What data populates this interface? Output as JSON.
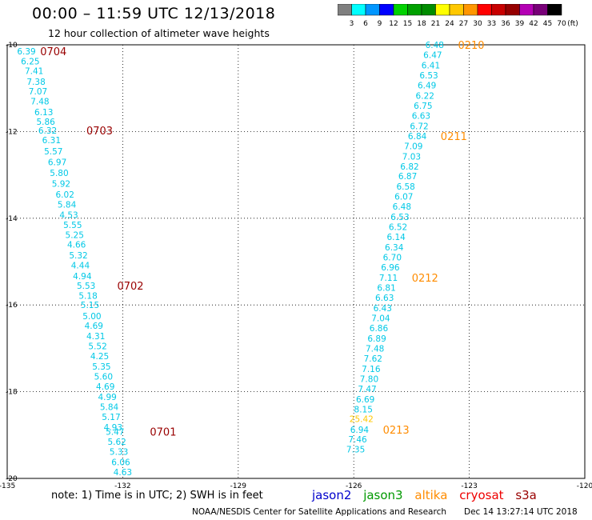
{
  "header": {
    "title": "00:00 – 11:59 UTC 12/13/2018",
    "subtitle": "12 hour collection of altimeter wave heights"
  },
  "colorbar": {
    "colors": [
      "#7f7f7f",
      "#00ffff",
      "#0096ff",
      "#0000ff",
      "#00d200",
      "#00a000",
      "#008c00",
      "#ffff00",
      "#ffc800",
      "#ff9600",
      "#ff0000",
      "#c80000",
      "#960000",
      "#b400b4",
      "#780078",
      "#000000"
    ],
    "labels": [
      "3",
      "6",
      "9",
      "12",
      "15",
      "18",
      "21",
      "24",
      "27",
      "30",
      "33",
      "36",
      "39",
      "42",
      "45",
      "70"
    ],
    "unit": "(ft)"
  },
  "footer": {
    "note": "note:  1) Time is in UTC;  2) SWH is in feet",
    "credit": "NOAA/NESDIS Center for Satellite Applications and Research",
    "timestamp": "Dec 14 13:27:14 UTC 2018"
  },
  "legend": [
    {
      "label": "jason2",
      "color": "#0000cc"
    },
    {
      "label": "jason3",
      "color": "#009900"
    },
    {
      "label": "altika",
      "color": "#ff8c00"
    },
    {
      "label": "cryosat",
      "color": "#ee0000"
    },
    {
      "label": "s3a",
      "color": "#990000"
    }
  ],
  "chart_data": {
    "type": "scatter",
    "title": "00:00 – 11:59 UTC 12/13/2018",
    "subtitle": "12 hour collection of altimeter wave heights",
    "xlim": [
      -135,
      -120
    ],
    "ylim": [
      -20,
      -10
    ],
    "x_ticks": [
      "-135",
      "-132",
      "-129",
      "-126",
      "-123",
      "-120"
    ],
    "y_ticks": [
      "-10",
      "-12",
      "-14",
      "-16",
      "-18",
      "-20"
    ],
    "grid": true,
    "series": [
      {
        "name": "s3a",
        "color": "#00c8e6",
        "label_color": "#990000",
        "points": [
          {
            "lon": -134.5,
            "lat": -10.15,
            "v": "6.39"
          },
          {
            "lon": -134.4,
            "lat": -10.38,
            "v": "6.25"
          },
          {
            "lon": -134.3,
            "lat": -10.6,
            "v": "7.41"
          },
          {
            "lon": -134.25,
            "lat": -10.85,
            "v": "7.38"
          },
          {
            "lon": -134.2,
            "lat": -11.07,
            "v": "7.07"
          },
          {
            "lon": -134.15,
            "lat": -11.3,
            "v": "7.48"
          },
          {
            "lon": -134.05,
            "lat": -11.55,
            "v": "6.13"
          },
          {
            "lon": -134.0,
            "lat": -11.77,
            "v": "5.86"
          },
          {
            "lon": -133.95,
            "lat": -11.97,
            "v": "6.32"
          },
          {
            "lon": -133.85,
            "lat": -12.2,
            "v": "6.31"
          },
          {
            "lon": -133.8,
            "lat": -12.45,
            "v": "5.57"
          },
          {
            "lon": -133.7,
            "lat": -12.7,
            "v": "6.97"
          },
          {
            "lon": -133.65,
            "lat": -12.95,
            "v": "5.80"
          },
          {
            "lon": -133.6,
            "lat": -13.2,
            "v": "5.92"
          },
          {
            "lon": -133.5,
            "lat": -13.45,
            "v": "6.02"
          },
          {
            "lon": -133.45,
            "lat": -13.68,
            "v": "5.84"
          },
          {
            "lon": -133.4,
            "lat": -13.92,
            "v": "4.53"
          },
          {
            "lon": -133.3,
            "lat": -14.15,
            "v": "5.55"
          },
          {
            "lon": -133.25,
            "lat": -14.38,
            "v": "5.25"
          },
          {
            "lon": -133.2,
            "lat": -14.6,
            "v": "4.66"
          },
          {
            "lon": -133.15,
            "lat": -14.85,
            "v": "5.32"
          },
          {
            "lon": -133.1,
            "lat": -15.08,
            "v": "4.44"
          },
          {
            "lon": -133.05,
            "lat": -15.33,
            "v": "4.94"
          },
          {
            "lon": -132.95,
            "lat": -15.55,
            "v": "5.53"
          },
          {
            "lon": -132.9,
            "lat": -15.78,
            "v": "5.18"
          },
          {
            "lon": -132.85,
            "lat": -16.0,
            "v": "5.15"
          },
          {
            "lon": -132.8,
            "lat": -16.25,
            "v": "5.00"
          },
          {
            "lon": -132.75,
            "lat": -16.48,
            "v": "4.69"
          },
          {
            "lon": -132.7,
            "lat": -16.72,
            "v": "4.31"
          },
          {
            "lon": -132.65,
            "lat": -16.95,
            "v": "5.52"
          },
          {
            "lon": -132.6,
            "lat": -17.18,
            "v": "4.25"
          },
          {
            "lon": -132.55,
            "lat": -17.42,
            "v": "5.35"
          },
          {
            "lon": -132.5,
            "lat": -17.65,
            "v": "5.60"
          },
          {
            "lon": -132.45,
            "lat": -17.88,
            "v": "4.69"
          },
          {
            "lon": -132.4,
            "lat": -18.12,
            "v": "4.99"
          },
          {
            "lon": -132.35,
            "lat": -18.35,
            "v": "5.84"
          },
          {
            "lon": -132.3,
            "lat": -18.58,
            "v": "5.17"
          },
          {
            "lon": -132.25,
            "lat": -18.82,
            "v": "4.93"
          },
          {
            "lon": -132.2,
            "lat": -18.92,
            "v": "5.47"
          },
          {
            "lon": -132.15,
            "lat": -19.15,
            "v": "5.62"
          },
          {
            "lon": -132.1,
            "lat": -19.38,
            "v": "5.33"
          },
          {
            "lon": -132.05,
            "lat": -19.62,
            "v": "6.06"
          },
          {
            "lon": -132.0,
            "lat": -19.85,
            "v": "4.63"
          }
        ],
        "time_labels": [
          {
            "lon": -133.8,
            "lat": -10.15,
            "t": "0704"
          },
          {
            "lon": -132.6,
            "lat": -11.97,
            "t": "0703"
          },
          {
            "lon": -131.8,
            "lat": -15.55,
            "t": "0702"
          },
          {
            "lon": -130.95,
            "lat": -18.92,
            "t": "0701"
          }
        ]
      },
      {
        "name": "altika",
        "color": "#00c8e6",
        "label_color": "#ff8c00",
        "points": [
          {
            "lon": -123.9,
            "lat": -10.0,
            "v": "6.48"
          },
          {
            "lon": -123.95,
            "lat": -10.23,
            "v": "6.47"
          },
          {
            "lon": -124.0,
            "lat": -10.47,
            "v": "6.41"
          },
          {
            "lon": -124.05,
            "lat": -10.7,
            "v": "6.53"
          },
          {
            "lon": -124.1,
            "lat": -10.93,
            "v": "6.49"
          },
          {
            "lon": -124.15,
            "lat": -11.17,
            "v": "6.22"
          },
          {
            "lon": -124.2,
            "lat": -11.4,
            "v": "6.75"
          },
          {
            "lon": -124.25,
            "lat": -11.63,
            "v": "6.63"
          },
          {
            "lon": -124.3,
            "lat": -11.87,
            "v": "6.72"
          },
          {
            "lon": -124.35,
            "lat": -12.1,
            "v": "6.84"
          },
          {
            "lon": -124.45,
            "lat": -12.33,
            "v": "7.09"
          },
          {
            "lon": -124.5,
            "lat": -12.57,
            "v": "7.03"
          },
          {
            "lon": -124.55,
            "lat": -12.8,
            "v": "6.82"
          },
          {
            "lon": -124.6,
            "lat": -13.03,
            "v": "6.87"
          },
          {
            "lon": -124.65,
            "lat": -13.27,
            "v": "6.58"
          },
          {
            "lon": -124.7,
            "lat": -13.5,
            "v": "6.07"
          },
          {
            "lon": -124.75,
            "lat": -13.73,
            "v": "6.48"
          },
          {
            "lon": -124.8,
            "lat": -13.97,
            "v": "6.53"
          },
          {
            "lon": -124.85,
            "lat": -14.2,
            "v": "6.52"
          },
          {
            "lon": -124.9,
            "lat": -14.43,
            "v": "6.14"
          },
          {
            "lon": -124.95,
            "lat": -14.67,
            "v": "6.34"
          },
          {
            "lon": -125.0,
            "lat": -14.9,
            "v": "6.70"
          },
          {
            "lon": -125.05,
            "lat": -15.13,
            "v": "6.96"
          },
          {
            "lon": -125.1,
            "lat": -15.37,
            "v": "7.11"
          },
          {
            "lon": -125.15,
            "lat": -15.6,
            "v": "6.81"
          },
          {
            "lon": -125.2,
            "lat": -15.83,
            "v": "6.63"
          },
          {
            "lon": -125.25,
            "lat": -16.07,
            "v": "6.43"
          },
          {
            "lon": -125.3,
            "lat": -16.3,
            "v": "7.04"
          },
          {
            "lon": -125.35,
            "lat": -16.53,
            "v": "6.86"
          },
          {
            "lon": -125.4,
            "lat": -16.77,
            "v": "6.89"
          },
          {
            "lon": -125.45,
            "lat": -17.0,
            "v": "7.48"
          },
          {
            "lon": -125.5,
            "lat": -17.23,
            "v": "7.62"
          },
          {
            "lon": -125.55,
            "lat": -17.47,
            "v": "7.16"
          },
          {
            "lon": -125.6,
            "lat": -17.7,
            "v": "7.80"
          },
          {
            "lon": -125.65,
            "lat": -17.93,
            "v": "7.47"
          },
          {
            "lon": -125.7,
            "lat": -18.17,
            "v": "6.69"
          },
          {
            "lon": -125.75,
            "lat": -18.4,
            "v": "8.15"
          },
          {
            "lon": -125.8,
            "lat": -18.63,
            "v": "25.42",
            "color": "#ffc800"
          },
          {
            "lon": -125.85,
            "lat": -18.87,
            "v": "6.94"
          },
          {
            "lon": -125.9,
            "lat": -19.1,
            "v": "7.46"
          },
          {
            "lon": -125.95,
            "lat": -19.33,
            "v": "7.35"
          }
        ],
        "time_labels": [
          {
            "lon": -122.95,
            "lat": -10.0,
            "t": "0210"
          },
          {
            "lon": -123.4,
            "lat": -12.1,
            "t": "0211"
          },
          {
            "lon": -124.15,
            "lat": -15.37,
            "t": "0212"
          },
          {
            "lon": -124.9,
            "lat": -18.87,
            "t": "0213"
          }
        ]
      }
    ]
  }
}
